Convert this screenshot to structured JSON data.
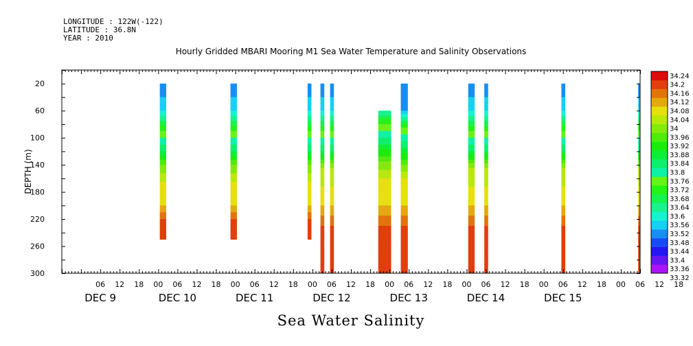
{
  "header": {
    "longitude": "LONGITUDE : 122W(-122)",
    "latitude": "LATITUDE : 36.8N",
    "year": "YEAR : 2010"
  },
  "chart_data": {
    "type": "heatmap",
    "title": "Hourly Gridded MBARI Mooring M1 Sea Water Temperature and Salinity Observations",
    "variable": "Sea Water Salinity",
    "ylabel": "DEPTH (m)",
    "xlabel": "",
    "x_unit": "hours since DEC 9 00:00",
    "xlim": [
      -6,
      174
    ],
    "ylim": [
      0,
      300
    ],
    "y_inverted": true,
    "y_ticks": [
      20,
      60,
      100,
      140,
      180,
      220,
      260,
      300
    ],
    "x_hour_ticks": [
      "06",
      "12",
      "18",
      "00",
      "06",
      "12",
      "18",
      "00",
      "06",
      "12",
      "18",
      "00",
      "06",
      "12",
      "18",
      "00",
      "06",
      "12",
      "18",
      "00",
      "06",
      "12",
      "18",
      "00",
      "06",
      "12",
      "18",
      "00",
      "06",
      "12",
      "18",
      "00"
    ],
    "day_labels": [
      {
        "label": "DEC  9",
        "hour": 6
      },
      {
        "label": "DEC 10",
        "hour": 30
      },
      {
        "label": "DEC 11",
        "hour": 54
      },
      {
        "label": "DEC 12",
        "hour": 78
      },
      {
        "label": "DEC 13",
        "hour": 102
      },
      {
        "label": "DEC 14",
        "hour": 126
      },
      {
        "label": "DEC 15",
        "hour": 150
      }
    ],
    "colorbar": {
      "min": 33.32,
      "max": 34.24,
      "step": 0.04,
      "labels": [
        "34.24",
        "34.2",
        "34.16",
        "34.12",
        "34.08",
        "34.04",
        "34",
        "33.96",
        "33.92",
        "33.88",
        "33.84",
        "33.8",
        "33.76",
        "33.72",
        "33.68",
        "33.64",
        "33.6",
        "33.56",
        "33.52",
        "33.48",
        "33.44",
        "33.4",
        "33.36",
        "33.32"
      ]
    },
    "profiles": [
      {
        "t0": 24.5,
        "t1": 26.5,
        "zmin": 20,
        "zmax": 250,
        "profile": [
          [
            20,
            33.48
          ],
          [
            60,
            33.56
          ],
          [
            90,
            33.72
          ],
          [
            120,
            33.84
          ],
          [
            140,
            33.96
          ],
          [
            165,
            34.04
          ],
          [
            200,
            34.08
          ],
          [
            220,
            34.16
          ],
          [
            250,
            34.2
          ]
        ]
      },
      {
        "t0": 46.5,
        "t1": 48.5,
        "zmin": 20,
        "zmax": 250,
        "profile": [
          [
            20,
            33.48
          ],
          [
            60,
            33.56
          ],
          [
            90,
            33.72
          ],
          [
            120,
            33.84
          ],
          [
            140,
            33.96
          ],
          [
            165,
            34.04
          ],
          [
            200,
            34.08
          ],
          [
            220,
            34.16
          ],
          [
            250,
            34.2
          ]
        ]
      },
      {
        "t0": 70.5,
        "t1": 71.7,
        "zmin": 20,
        "zmax": 250,
        "profile": [
          [
            20,
            33.48
          ],
          [
            60,
            33.56
          ],
          [
            90,
            33.72
          ],
          [
            120,
            33.84
          ],
          [
            140,
            33.96
          ],
          [
            165,
            34.04
          ],
          [
            200,
            34.08
          ],
          [
            220,
            34.16
          ],
          [
            250,
            34.2
          ]
        ]
      },
      {
        "t0": 74.5,
        "t1": 75.7,
        "zmin": 20,
        "zmax": 300,
        "profile": [
          [
            20,
            33.48
          ],
          [
            60,
            33.56
          ],
          [
            90,
            33.72
          ],
          [
            120,
            33.84
          ],
          [
            145,
            34.0
          ],
          [
            200,
            34.08
          ],
          [
            230,
            34.16
          ],
          [
            260,
            34.2
          ],
          [
            300,
            34.16
          ]
        ]
      },
      {
        "t0": 77.5,
        "t1": 78.7,
        "zmin": 20,
        "zmax": 300,
        "profile": [
          [
            20,
            33.48
          ],
          [
            60,
            33.56
          ],
          [
            90,
            33.72
          ],
          [
            120,
            33.84
          ],
          [
            145,
            34.0
          ],
          [
            200,
            34.08
          ],
          [
            230,
            34.16
          ],
          [
            260,
            34.2
          ],
          [
            300,
            34.16
          ]
        ]
      },
      {
        "t0": 92.5,
        "t1": 96.5,
        "zmin": 60,
        "zmax": 300,
        "profile": [
          [
            60,
            33.6
          ],
          [
            80,
            33.72
          ],
          [
            110,
            33.84
          ],
          [
            135,
            33.96
          ],
          [
            160,
            34.04
          ],
          [
            200,
            34.08
          ],
          [
            230,
            34.16
          ],
          [
            260,
            34.2
          ],
          [
            300,
            34.16
          ]
        ]
      },
      {
        "t0": 99.5,
        "t1": 101.7,
        "zmin": 20,
        "zmax": 300,
        "profile": [
          [
            20,
            33.48
          ],
          [
            60,
            33.52
          ],
          [
            85,
            33.72
          ],
          [
            115,
            33.84
          ],
          [
            140,
            33.96
          ],
          [
            160,
            34.04
          ],
          [
            200,
            34.08
          ],
          [
            230,
            34.16
          ],
          [
            260,
            34.2
          ],
          [
            300,
            34.16
          ]
        ]
      },
      {
        "t0": 120.5,
        "t1": 122.5,
        "zmin": 20,
        "zmax": 300,
        "profile": [
          [
            20,
            33.48
          ],
          [
            60,
            33.56
          ],
          [
            90,
            33.72
          ],
          [
            120,
            33.84
          ],
          [
            145,
            34.0
          ],
          [
            200,
            34.08
          ],
          [
            230,
            34.16
          ],
          [
            260,
            34.2
          ],
          [
            300,
            34.16
          ]
        ]
      },
      {
        "t0": 125.5,
        "t1": 126.7,
        "zmin": 20,
        "zmax": 300,
        "profile": [
          [
            20,
            33.48
          ],
          [
            60,
            33.56
          ],
          [
            90,
            33.72
          ],
          [
            120,
            33.84
          ],
          [
            145,
            34.0
          ],
          [
            200,
            34.08
          ],
          [
            230,
            34.16
          ],
          [
            260,
            34.2
          ],
          [
            300,
            34.16
          ]
        ]
      },
      {
        "t0": 149.5,
        "t1": 150.7,
        "zmin": 20,
        "zmax": 300,
        "profile": [
          [
            20,
            33.48
          ],
          [
            60,
            33.56
          ],
          [
            90,
            33.72
          ],
          [
            120,
            33.84
          ],
          [
            145,
            34.0
          ],
          [
            200,
            34.08
          ],
          [
            230,
            34.16
          ],
          [
            260,
            34.2
          ],
          [
            300,
            34.16
          ]
        ]
      },
      {
        "t0": 173.4,
        "t1": 174.0,
        "zmin": 20,
        "zmax": 300,
        "profile": [
          [
            20,
            33.48
          ],
          [
            60,
            33.56
          ],
          [
            90,
            33.72
          ],
          [
            120,
            33.84
          ],
          [
            145,
            34.0
          ],
          [
            200,
            34.08
          ],
          [
            230,
            34.16
          ],
          [
            260,
            34.2
          ],
          [
            300,
            34.16
          ]
        ]
      }
    ]
  }
}
